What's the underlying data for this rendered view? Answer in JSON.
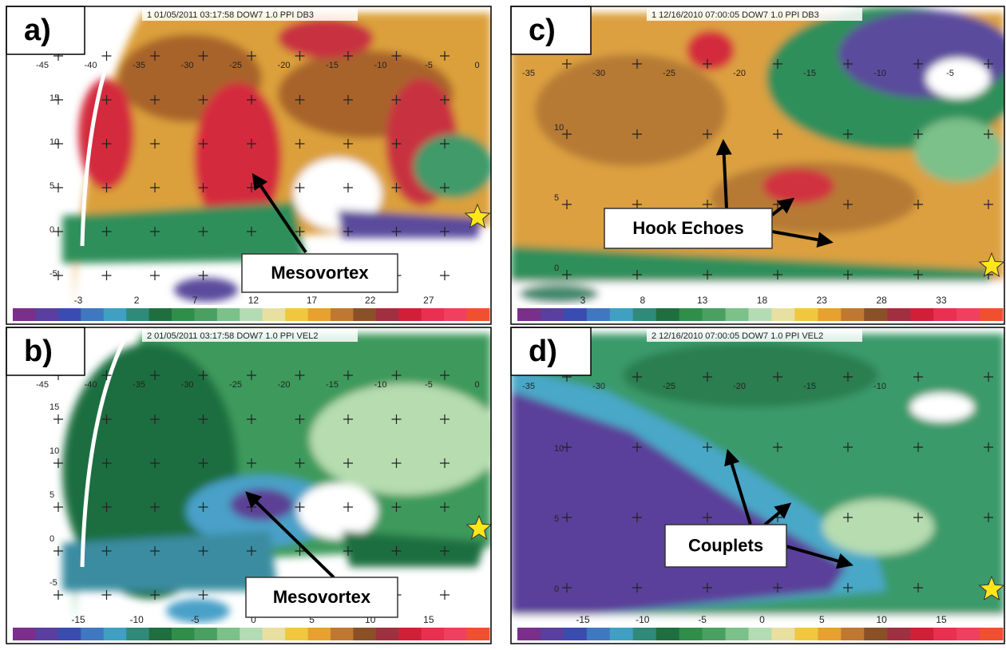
{
  "panels": [
    {
      "label": "a)",
      "header": "1 01/05/2011 03:17:58 DOW7 1.0 PPI DB3",
      "x_labels": [
        "-45",
        "-40",
        "-35",
        "-30",
        "-25",
        "-20",
        "-15",
        "-10",
        "-5",
        "0"
      ],
      "y_labels": [
        "15",
        "10",
        "5",
        "0",
        "-5"
      ],
      "colorbar_labels": [
        "-3",
        "2",
        "7",
        "12",
        "17",
        "22",
        "27"
      ],
      "annotation": "Mesovortex"
    },
    {
      "label": "b)",
      "header": "2 01/05/2011 03:17:58 DOW7 1.0 PPI VEL2",
      "x_labels": [
        "-45",
        "-40",
        "-35",
        "-30",
        "-25",
        "-20",
        "-15",
        "-10",
        "-5",
        "0"
      ],
      "y_labels": [
        "15",
        "10",
        "5",
        "0",
        "-5"
      ],
      "colorbar_labels": [
        "-15",
        "-10",
        "-5",
        "0",
        "5",
        "10",
        "15"
      ],
      "annotation": "Mesovortex"
    },
    {
      "label": "c)",
      "header": "1 12/16/2010 07:00:05 DOW7 1.0 PPI DB3",
      "x_labels": [
        "-35",
        "-30",
        "-25",
        "-20",
        "-15",
        "-10",
        "-5"
      ],
      "y_labels": [
        "10",
        "5",
        "0"
      ],
      "colorbar_labels": [
        "3",
        "8",
        "13",
        "18",
        "23",
        "28",
        "33"
      ],
      "annotation": "Hook Echoes"
    },
    {
      "label": "d)",
      "header": "2 12/16/2010 07:00:05 DOW7 1.0 PPI VEL2",
      "x_labels": [
        "-35",
        "-30",
        "-25",
        "-20",
        "-15",
        "-10"
      ],
      "y_labels": [
        "10",
        "5",
        "0"
      ],
      "colorbar_labels": [
        "-15",
        "-10",
        "-5",
        "0",
        "5",
        "10",
        "15"
      ],
      "annotation": "Couplets"
    }
  ]
}
